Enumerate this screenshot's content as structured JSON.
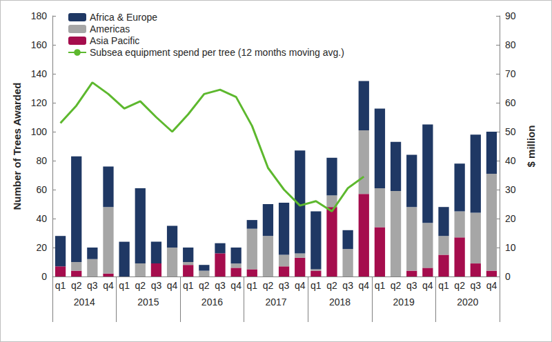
{
  "chart_data": {
    "type": "bar",
    "stacked": true,
    "grid": false,
    "legend": "upper left",
    "categories": [
      "q1",
      "q2",
      "q3",
      "q4",
      "q1",
      "q2",
      "q3",
      "q4",
      "q1",
      "q2",
      "q3",
      "q4",
      "q1",
      "q2",
      "q3",
      "q4",
      "q1",
      "q2",
      "q3",
      "q4",
      "q1",
      "q2",
      "q3",
      "q4",
      "q1",
      "q2",
      "q3",
      "q4"
    ],
    "x_groups": [
      "2014",
      "2015",
      "2016",
      "2017",
      "2018",
      "2019",
      "2020"
    ],
    "ylabel": "Number of Trees Awarded",
    "y2label": "$ million",
    "ylim": [
      0,
      180
    ],
    "yticks": [
      0,
      20,
      40,
      60,
      80,
      100,
      120,
      140,
      160,
      180
    ],
    "y2lim": [
      0,
      90
    ],
    "y2ticks": [
      0,
      10,
      20,
      30,
      40,
      50,
      60,
      70,
      80,
      90
    ],
    "series": [
      {
        "name": "Africa & Europe",
        "type": "bar",
        "color": "#1f3864",
        "values": [
          21,
          73,
          8,
          28,
          24,
          52,
          15,
          15,
          10,
          4,
          7,
          11,
          6,
          22,
          36,
          71,
          40,
          26,
          13,
          34,
          55,
          34,
          36,
          68,
          20,
          33,
          54,
          29
        ]
      },
      {
        "name": "Americas",
        "type": "bar",
        "color": "#a6a6a6",
        "values": [
          0,
          6,
          12,
          46,
          0,
          9,
          0,
          20,
          2,
          4,
          0,
          3,
          28,
          28,
          8,
          3,
          1,
          8,
          19,
          44,
          27,
          59,
          44,
          31,
          13,
          18,
          35,
          67
        ]
      },
      {
        "name": "Asia Pacific",
        "type": "bar",
        "color": "#a50d4d",
        "values": [
          7,
          4,
          0,
          2,
          0,
          0,
          9,
          0,
          8,
          0,
          16,
          6,
          5,
          0,
          7,
          13,
          4,
          48,
          0,
          57,
          34,
          0,
          4,
          6,
          15,
          27,
          9,
          4
        ]
      },
      {
        "name": "Subsea equipment spend per tree (12 months moving avg.)",
        "type": "line",
        "axis": "y2",
        "color": "#5db82e",
        "values": [
          53,
          59,
          67,
          63,
          58,
          60.5,
          55,
          50,
          56,
          63,
          64.5,
          62,
          52,
          37.5,
          30,
          24.5,
          26,
          22.5,
          30.5,
          34.5,
          null,
          null,
          null,
          null,
          null,
          null,
          null,
          null
        ]
      }
    ]
  }
}
